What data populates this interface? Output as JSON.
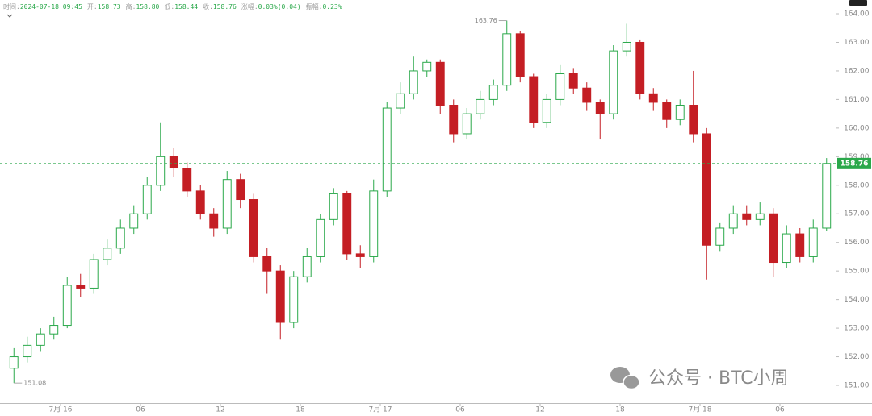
{
  "chart_data": {
    "type": "candlestick",
    "header": [
      {
        "label": "时间:",
        "value": "2024-07-18 09:45"
      },
      {
        "label": "开:",
        "value": "158.73"
      },
      {
        "label": "高:",
        "value": "158.80"
      },
      {
        "label": "低:",
        "value": "158.44"
      },
      {
        "label": "收:",
        "value": "158.76"
      },
      {
        "label": "涨幅:",
        "value": "0.03%(0.04)"
      },
      {
        "label": "振幅:",
        "value": "0.23%"
      }
    ],
    "categories": [
      null,
      null,
      null,
      null,
      "7月 16",
      null,
      null,
      null,
      null,
      null,
      "06",
      null,
      null,
      null,
      null,
      null,
      "12",
      null,
      null,
      null,
      null,
      null,
      "18",
      null,
      null,
      null,
      null,
      null,
      "7月 17",
      null,
      null,
      null,
      null,
      null,
      "06",
      null,
      null,
      null,
      null,
      null,
      "12",
      null,
      null,
      null,
      null,
      null,
      "18",
      null,
      null,
      null,
      null,
      null,
      "7月 18",
      null,
      null,
      null,
      null,
      null,
      "06",
      null,
      null,
      null
    ],
    "open": [
      151.6,
      152.0,
      152.4,
      152.8,
      153.1,
      154.5,
      154.4,
      155.4,
      155.8,
      156.5,
      157.0,
      158.0,
      159.0,
      158.6,
      157.8,
      157.0,
      156.5,
      158.2,
      157.5,
      155.5,
      155.0,
      153.2,
      154.8,
      155.5,
      156.8,
      157.7,
      155.6,
      155.5,
      157.8,
      160.7,
      161.2,
      162.0,
      162.3,
      160.8,
      159.8,
      160.5,
      161.0,
      161.5,
      163.3,
      161.8,
      160.2,
      161.0,
      161.9,
      161.4,
      160.9,
      160.5,
      162.7,
      163.0,
      161.2,
      160.9,
      160.3,
      160.8,
      159.8,
      155.9,
      156.5,
      157.0,
      156.8,
      157.0,
      155.3,
      156.3,
      155.5,
      156.5
    ],
    "high": [
      152.3,
      152.7,
      153.0,
      153.4,
      154.8,
      154.9,
      155.6,
      156.1,
      156.8,
      157.3,
      158.3,
      160.2,
      159.3,
      158.8,
      158.0,
      157.2,
      158.5,
      158.4,
      157.7,
      155.8,
      155.2,
      155.0,
      155.8,
      157.0,
      157.9,
      157.8,
      155.9,
      158.2,
      160.9,
      161.6,
      162.5,
      162.4,
      162.4,
      161.0,
      160.7,
      161.3,
      161.7,
      163.76,
      163.4,
      161.9,
      161.2,
      162.2,
      162.1,
      161.6,
      161.0,
      162.9,
      163.65,
      163.1,
      161.4,
      161.0,
      161.0,
      162.0,
      160.0,
      156.7,
      157.3,
      157.3,
      157.4,
      157.2,
      156.6,
      156.5,
      156.8,
      158.95
    ],
    "low": [
      151.08,
      151.8,
      152.2,
      152.6,
      153.0,
      154.1,
      154.2,
      155.2,
      155.6,
      156.3,
      156.8,
      157.8,
      158.3,
      157.6,
      156.8,
      156.2,
      156.3,
      157.2,
      155.3,
      154.2,
      152.6,
      153.0,
      154.6,
      155.3,
      156.6,
      155.4,
      155.1,
      155.3,
      157.6,
      160.5,
      161.0,
      161.8,
      160.5,
      159.5,
      159.6,
      160.3,
      160.8,
      161.3,
      161.6,
      160.0,
      160.0,
      160.8,
      161.2,
      160.6,
      159.6,
      160.3,
      162.5,
      161.0,
      160.6,
      160.0,
      160.1,
      159.5,
      154.7,
      155.7,
      156.3,
      156.6,
      156.6,
      154.8,
      155.1,
      155.3,
      155.3,
      156.4
    ],
    "close": [
      152.0,
      152.4,
      152.8,
      153.1,
      154.5,
      154.4,
      155.4,
      155.8,
      156.5,
      157.0,
      158.0,
      159.0,
      158.6,
      157.8,
      157.0,
      156.5,
      158.2,
      157.5,
      155.5,
      155.0,
      153.2,
      154.8,
      155.5,
      156.8,
      157.7,
      155.6,
      155.5,
      157.8,
      160.7,
      161.2,
      162.0,
      162.3,
      160.8,
      159.8,
      160.5,
      161.0,
      161.5,
      163.3,
      161.8,
      160.2,
      161.0,
      161.9,
      161.4,
      160.9,
      160.5,
      162.7,
      163.0,
      161.2,
      160.9,
      160.3,
      160.8,
      159.8,
      155.9,
      156.5,
      157.0,
      156.8,
      157.0,
      155.3,
      156.3,
      155.5,
      156.5,
      158.76
    ],
    "up_color": "#2aa84a",
    "down_color": "#c41e24",
    "ylim": [
      150.38,
      164.48
    ],
    "yticks": [
      {
        "value": 151,
        "label": "151.00"
      },
      {
        "value": 152,
        "label": "152.00"
      },
      {
        "value": 153,
        "label": "153.00"
      },
      {
        "value": 154,
        "label": "154.00"
      },
      {
        "value": 155,
        "label": "155.00"
      },
      {
        "value": 156,
        "label": "156.00"
      },
      {
        "value": 157,
        "label": "157.00"
      },
      {
        "value": 158,
        "label": "158.00"
      },
      {
        "value": 159,
        "label": "159.00"
      },
      {
        "value": 160,
        "label": "160.00"
      },
      {
        "value": 161,
        "label": "161.00"
      },
      {
        "value": 162,
        "label": "162.00"
      },
      {
        "value": 163,
        "label": "163.00"
      },
      {
        "value": 164,
        "label": "164.00"
      }
    ],
    "last_price": 158.76,
    "high_marker": {
      "value": 163.76,
      "index": 37
    },
    "low_marker": {
      "value": 151.08,
      "index": 0
    },
    "watermark": "公众号 · BTC小周"
  }
}
